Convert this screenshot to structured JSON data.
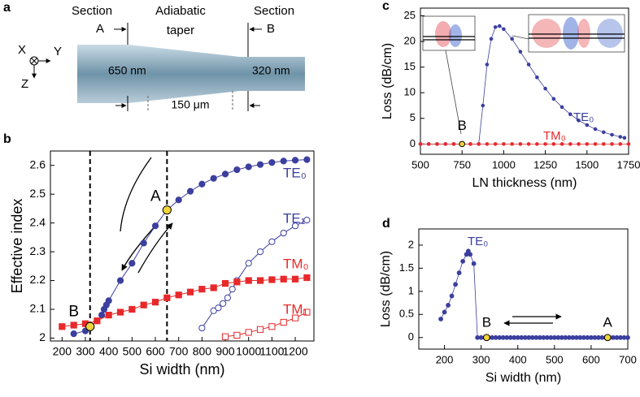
{
  "panel_a": {
    "panel": "a",
    "section_a": [
      "Section",
      "A"
    ],
    "taper": [
      "Adiabatic",
      "taper"
    ],
    "section_b": [
      "Section",
      "B"
    ],
    "width_a": "650 nm",
    "width_b": "320 nm",
    "length": "150 μm",
    "axes": [
      "X",
      "Y",
      "Z"
    ]
  },
  "chart_data": [
    {
      "type": "line",
      "panel": "b",
      "xlabel": "Si width (nm)",
      "ylabel": "Effective index",
      "xlim": [
        150,
        1280
      ],
      "ylim": [
        1.99,
        2.65
      ],
      "xticks": [
        200,
        300,
        400,
        500,
        600,
        700,
        800,
        900,
        1000,
        1100,
        1200
      ],
      "yticks": [
        2,
        2.1,
        2.2,
        2.3,
        2.4,
        2.5,
        2.6
      ],
      "vlines": [
        320,
        650
      ],
      "markers": [
        {
          "label": "A",
          "x": 650,
          "y": 2.445
        },
        {
          "label": "B",
          "x": 320,
          "y": 2.04
        }
      ],
      "series": [
        {
          "name": "TE₀",
          "color": "#3b3f9e",
          "marker": "circle",
          "filled": true,
          "x": [
            250,
            300,
            320,
            350,
            370,
            380,
            390,
            400,
            450,
            500,
            550,
            600,
            650,
            700,
            750,
            800,
            850,
            900,
            950,
            1000,
            1050,
            1100,
            1150,
            1200,
            1250
          ],
          "values": [
            2.015,
            2.025,
            2.04,
            2.06,
            2.08,
            2.1,
            2.115,
            2.13,
            2.2,
            2.26,
            2.33,
            2.39,
            2.445,
            2.48,
            2.51,
            2.535,
            2.555,
            2.57,
            2.585,
            2.595,
            2.603,
            2.61,
            2.615,
            2.618,
            2.62
          ]
        },
        {
          "name": "TE₁",
          "color": "#3b3f9e",
          "marker": "circle",
          "filled": false,
          "x": [
            800,
            850,
            870,
            890,
            910,
            930,
            950,
            1000,
            1050,
            1100,
            1150,
            1200,
            1250
          ],
          "values": [
            2.035,
            2.095,
            2.105,
            2.12,
            2.14,
            2.17,
            2.2,
            2.26,
            2.3,
            2.335,
            2.365,
            2.39,
            2.41
          ]
        },
        {
          "name": "TM₀",
          "color": "#e8292a",
          "marker": "square",
          "filled": true,
          "x": [
            200,
            250,
            300,
            350,
            400,
            450,
            500,
            550,
            600,
            650,
            700,
            750,
            800,
            850,
            900,
            950,
            1000,
            1050,
            1100,
            1150,
            1200,
            1250
          ],
          "values": [
            2.04,
            2.045,
            2.05,
            2.06,
            2.08,
            2.09,
            2.1,
            2.115,
            2.125,
            2.14,
            2.15,
            2.16,
            2.17,
            2.175,
            2.19,
            2.195,
            2.2,
            2.2,
            2.203,
            2.205,
            2.205,
            2.21
          ]
        },
        {
          "name": "TM₁",
          "color": "#e8292a",
          "marker": "square",
          "filled": false,
          "x": [
            900,
            950,
            1000,
            1050,
            1100,
            1150,
            1200,
            1250
          ],
          "values": [
            2.005,
            2.01,
            2.02,
            2.03,
            2.04,
            2.055,
            2.07,
            2.09
          ]
        }
      ]
    },
    {
      "type": "line",
      "panel": "c",
      "xlabel": "LN thickness (nm)",
      "ylabel": "Loss (dB/cm)",
      "xlim": [
        500,
        1750
      ],
      "ylim": [
        -2,
        26.5
      ],
      "xticks": [
        500,
        750,
        1000,
        1250,
        1500,
        1750
      ],
      "yticks": [
        0,
        5,
        10,
        15,
        20,
        25
      ],
      "markers": [
        {
          "label": "B",
          "x": 750,
          "y": 0
        }
      ],
      "series": [
        {
          "name": "TE₀",
          "color": "#3b3f9e",
          "marker": "circle",
          "filled": true,
          "x": [
            500,
            550,
            600,
            650,
            700,
            750,
            800,
            850,
            875,
            900,
            925,
            950,
            975,
            1000,
            1050,
            1100,
            1150,
            1200,
            1250,
            1300,
            1350,
            1400,
            1450,
            1500,
            1550,
            1600,
            1650,
            1700,
            1725
          ],
          "values": [
            0,
            0,
            0,
            0,
            0,
            0,
            0,
            0,
            7.5,
            15.5,
            20.5,
            22.8,
            23,
            22.4,
            20.5,
            18,
            15.5,
            13,
            10.8,
            8.8,
            7.2,
            5.8,
            4.6,
            3.7,
            2.9,
            2.3,
            1.8,
            1.4,
            1.2
          ]
        },
        {
          "name": "TM₀",
          "color": "#e8292a",
          "marker": "circle",
          "filled": true,
          "x": [
            500,
            550,
            600,
            650,
            700,
            750,
            800,
            850,
            900,
            950,
            1000,
            1050,
            1100,
            1150,
            1200,
            1250,
            1300,
            1350,
            1400,
            1450,
            1500,
            1550,
            1600,
            1650,
            1700,
            1750
          ],
          "values": [
            0,
            0,
            0,
            0,
            0,
            0,
            0,
            0,
            0,
            0,
            0,
            0,
            0,
            0,
            0,
            0,
            0,
            0,
            0,
            0,
            0,
            0,
            0,
            0,
            0,
            0
          ]
        }
      ]
    },
    {
      "type": "line",
      "panel": "d",
      "xlabel": "Si width (nm)",
      "ylabel": "Loss (dB/cm)",
      "xlim": [
        130,
        700
      ],
      "ylim": [
        -0.25,
        2.35
      ],
      "xticks": [
        200,
        300,
        400,
        500,
        600,
        700
      ],
      "yticks": [
        0,
        0.5,
        1,
        1.5,
        2
      ],
      "markers": [
        {
          "label": "B",
          "x": 315,
          "y": 0
        },
        {
          "label": "A",
          "x": 645,
          "y": 0
        }
      ],
      "series": [
        {
          "name": "TE₀",
          "color": "#3b3f9e",
          "marker": "circle",
          "filled": true,
          "x": [
            190,
            200,
            210,
            220,
            230,
            240,
            250,
            260,
            265,
            270,
            280,
            290,
            300,
            310,
            320,
            330,
            340,
            350,
            360,
            370,
            380,
            390,
            400,
            410,
            420,
            430,
            440,
            450,
            460,
            470,
            480,
            490,
            500,
            510,
            520,
            530,
            540,
            550,
            560,
            570,
            580,
            590,
            600,
            610,
            620,
            630,
            640,
            650,
            660,
            670,
            680,
            690,
            700
          ],
          "values": [
            0.4,
            0.55,
            0.7,
            0.9,
            1.15,
            1.4,
            1.65,
            1.8,
            1.87,
            1.8,
            1.6,
            0,
            0,
            0,
            0,
            0,
            0,
            0,
            0,
            0,
            0,
            0,
            0,
            0,
            0,
            0,
            0,
            0,
            0,
            0,
            0,
            0,
            0,
            0,
            0,
            0,
            0,
            0,
            0,
            0,
            0,
            0,
            0,
            0,
            0,
            0,
            0,
            0,
            0,
            0,
            0,
            0,
            0
          ]
        }
      ]
    }
  ]
}
